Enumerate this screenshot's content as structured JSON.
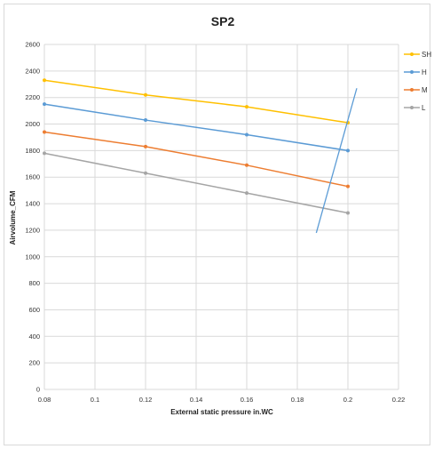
{
  "chart_data": {
    "type": "line",
    "title": "SP2",
    "xlabel": "External static pressure  in.WC",
    "ylabel": "Airvolume_CFM",
    "xlim": [
      0.08,
      0.22
    ],
    "ylim": [
      0,
      2600
    ],
    "x_ticks": [
      "0.08",
      "0.1",
      "0.12",
      "0.14",
      "0.16",
      "0.18",
      "0.2",
      "0.22"
    ],
    "y_ticks": [
      "0",
      "200",
      "400",
      "600",
      "800",
      "1000",
      "1200",
      "1400",
      "1600",
      "1800",
      "2000",
      "2200",
      "2400",
      "2600"
    ],
    "grid": true,
    "legend_position": "top-right",
    "x": [
      0.08,
      0.12,
      0.16,
      0.2
    ],
    "series": [
      {
        "name": "SH",
        "color": "#ffc000",
        "values": [
          2330,
          2220,
          2130,
          2010
        ]
      },
      {
        "name": "H",
        "color": "#5b9bd5",
        "values": [
          2150,
          2030,
          1920,
          1800
        ]
      },
      {
        "name": "M",
        "color": "#ed7d31",
        "values": [
          1940,
          1830,
          1690,
          1530
        ]
      },
      {
        "name": "L",
        "color": "#a5a5a5",
        "values": [
          1780,
          1630,
          1480,
          1330
        ]
      }
    ],
    "system_curve": {
      "color": "#5b9bd5",
      "x": [
        0.1875,
        0.2035
      ],
      "y": [
        1180,
        2270
      ]
    }
  }
}
